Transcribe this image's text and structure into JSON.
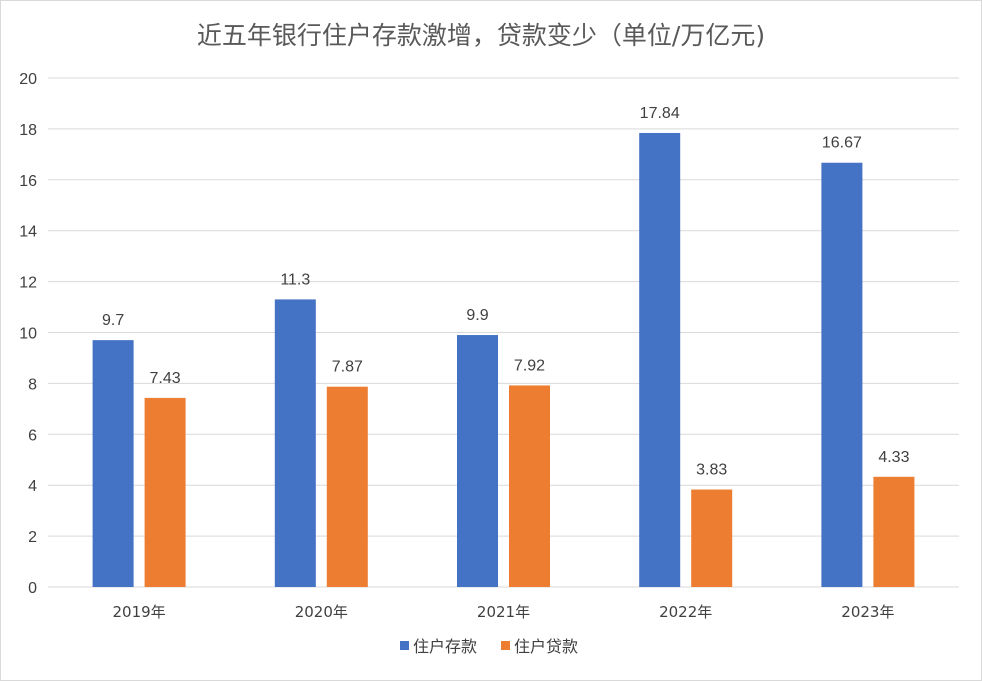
{
  "chart_data": {
    "type": "bar",
    "title": "近五年银行住户存款激增，贷款变少（单位/万亿元)",
    "categories": [
      "2019年",
      "2020年",
      "2021年",
      "2022年",
      "2023年"
    ],
    "series": [
      {
        "name": "住户存款",
        "color": "#4472C4",
        "values": [
          9.7,
          11.3,
          9.9,
          17.84,
          16.67
        ],
        "labels": [
          "9.7",
          "11.3",
          "9.9",
          "17.84",
          "16.67"
        ]
      },
      {
        "name": "住户贷款",
        "color": "#ED7D31",
        "values": [
          7.43,
          7.87,
          7.92,
          3.83,
          4.33
        ],
        "labels": [
          "7.43",
          "7.87",
          "7.92",
          "3.83",
          "4.33"
        ]
      }
    ],
    "xlabel": "",
    "ylabel": "",
    "ylim": [
      0,
      20
    ],
    "yticks": [
      0,
      2,
      4,
      6,
      8,
      10,
      12,
      14,
      16,
      18,
      20
    ],
    "grid": true,
    "legend": "bottom-center"
  }
}
